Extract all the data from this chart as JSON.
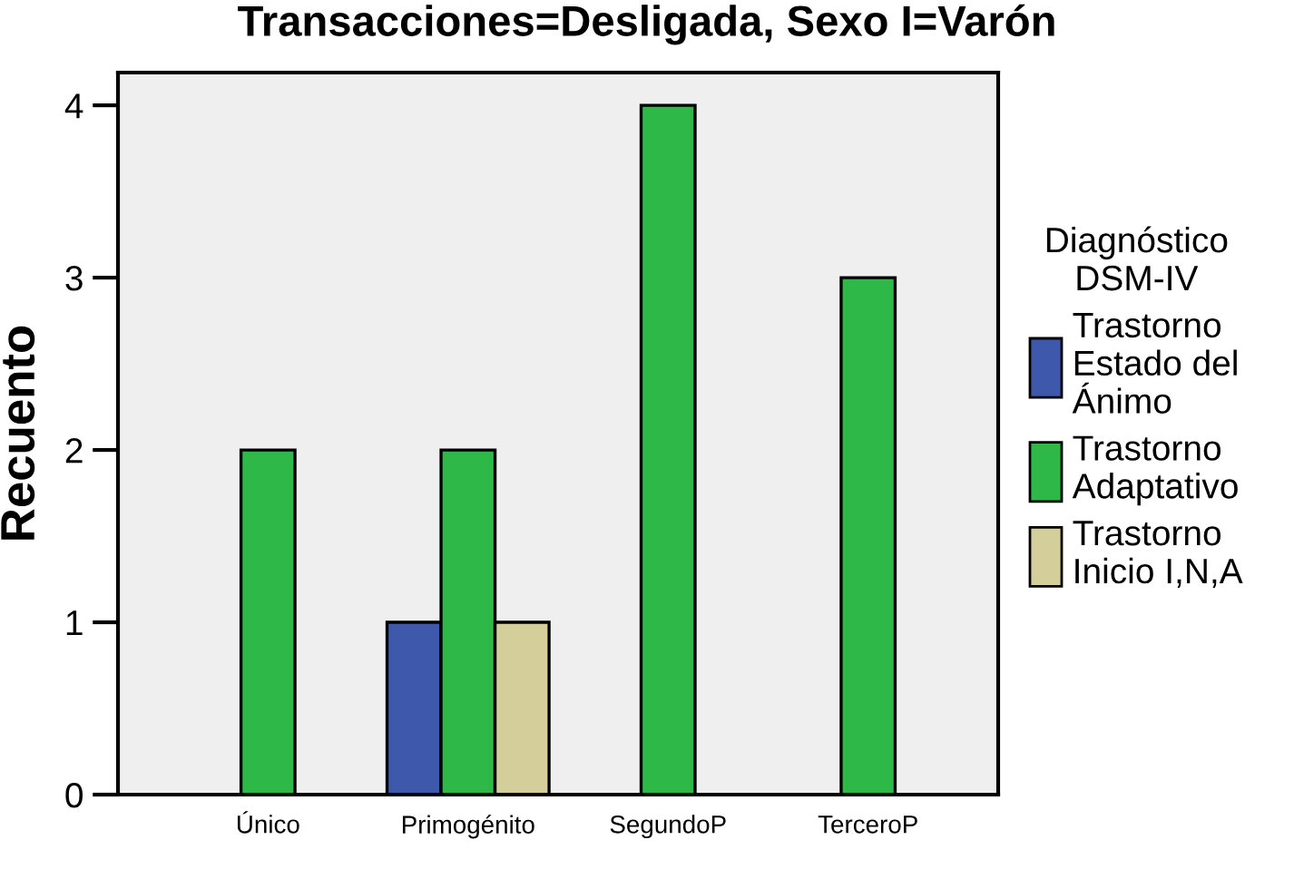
{
  "chart_data": {
    "type": "bar",
    "title": "Transacciones=Desligada, Sexo I=Varón",
    "ylabel": "Recuento",
    "legend_title": "Diagnóstico\nDSM-IV",
    "categories": [
      "Único",
      "Primogénito",
      "SegundoP",
      "TerceroP"
    ],
    "series": [
      {
        "name": "Trastorno\nEstado del\nÁnimo",
        "color": "#3e58ac",
        "values": [
          null,
          1,
          null,
          null
        ]
      },
      {
        "name": "Trastorno\nAdaptativo",
        "color": "#2eb848",
        "values": [
          2,
          2,
          4,
          3
        ]
      },
      {
        "name": "Trastorno\nInicio I,N,A",
        "color": "#d4cf9a",
        "values": [
          null,
          1,
          null,
          null
        ]
      }
    ],
    "ylim": [
      0,
      4.19
    ],
    "yticks": [
      0,
      1,
      2,
      3,
      4
    ],
    "grid": false,
    "legend": "right"
  }
}
